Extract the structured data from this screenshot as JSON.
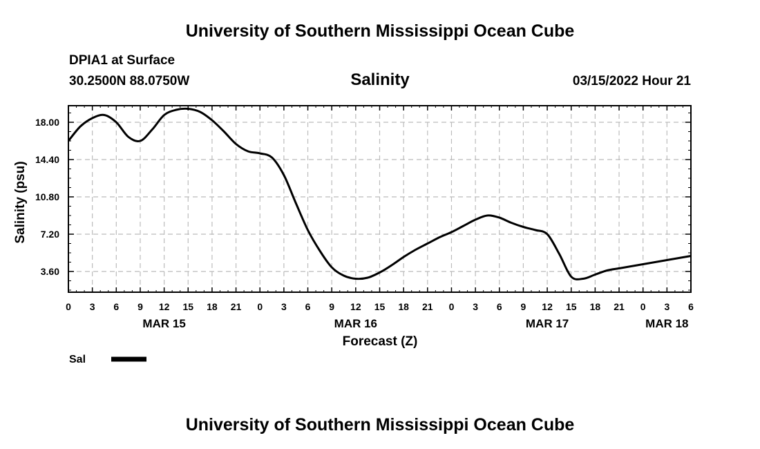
{
  "header": {
    "title": "University of Southern Mississippi Ocean Cube",
    "station": "DPIA1 at Surface",
    "coordinates": "30.2500N  88.0750W",
    "variable": "Salinity",
    "datetime": "03/15/2022 Hour 21"
  },
  "footer": {
    "title": "University of Southern Mississippi Ocean Cube"
  },
  "chart_data": {
    "type": "line",
    "title": "Salinity",
    "xlabel": "Forecast (Z)",
    "ylabel": "Salinity (psu)",
    "x_unit": "hours since 00Z MAR 15",
    "xlim": [
      0,
      78
    ],
    "ylim": [
      1.6,
      19.6
    ],
    "yticks": [
      3.6,
      7.2,
      10.8,
      14.4,
      18.0
    ],
    "ytick_labels": [
      "3.60",
      "7.20",
      "10.80",
      "14.40",
      "18.00"
    ],
    "xticks": [
      0,
      3,
      6,
      9,
      12,
      15,
      18,
      21,
      24,
      27,
      30,
      33,
      36,
      39,
      42,
      45,
      48,
      51,
      54,
      57,
      60,
      63,
      66,
      69,
      72,
      75,
      78
    ],
    "xtick_labels": [
      "0",
      "3",
      "6",
      "9",
      "12",
      "15",
      "18",
      "21",
      "0",
      "3",
      "6",
      "9",
      "12",
      "15",
      "18",
      "21",
      "0",
      "3",
      "6",
      "9",
      "12",
      "15",
      "18",
      "21",
      "0",
      "3",
      "6"
    ],
    "date_labels": [
      {
        "x": 12,
        "label": "MAR 15"
      },
      {
        "x": 36,
        "label": "MAR 16"
      },
      {
        "x": 60,
        "label": "MAR 17"
      },
      {
        "x": 75,
        "label": "MAR 18"
      }
    ],
    "grid": true,
    "legend_position": "bottom-left",
    "series": [
      {
        "name": "Sal",
        "color": "#000000",
        "x": [
          0,
          1.5,
          3,
          4.5,
          6,
          7.5,
          9,
          10.5,
          12,
          13.5,
          15,
          16.5,
          18,
          19.5,
          21,
          22.5,
          24,
          25.5,
          27,
          28.5,
          30,
          31.5,
          33,
          34.5,
          36,
          37.5,
          39,
          40.5,
          42,
          43.5,
          45,
          46.5,
          48,
          49.5,
          51,
          52.5,
          54,
          55.5,
          57,
          58.5,
          60,
          61.5,
          63,
          64.5,
          66,
          67.5,
          69,
          70.5,
          72,
          73.5,
          75,
          76.5,
          78
        ],
        "values": [
          16.2,
          17.6,
          18.4,
          18.7,
          18.0,
          16.6,
          16.2,
          17.3,
          18.7,
          19.2,
          19.3,
          19.0,
          18.2,
          17.1,
          15.9,
          15.2,
          15.0,
          14.6,
          12.9,
          10.2,
          7.6,
          5.6,
          4.0,
          3.2,
          2.9,
          3.0,
          3.5,
          4.2,
          5.0,
          5.7,
          6.3,
          6.9,
          7.4,
          8.0,
          8.6,
          9.0,
          8.8,
          8.3,
          7.9,
          7.6,
          7.2,
          5.3,
          3.1,
          2.9,
          3.3,
          3.7,
          3.9,
          4.1,
          4.3,
          4.5,
          4.7,
          4.9,
          5.1
        ]
      }
    ]
  }
}
